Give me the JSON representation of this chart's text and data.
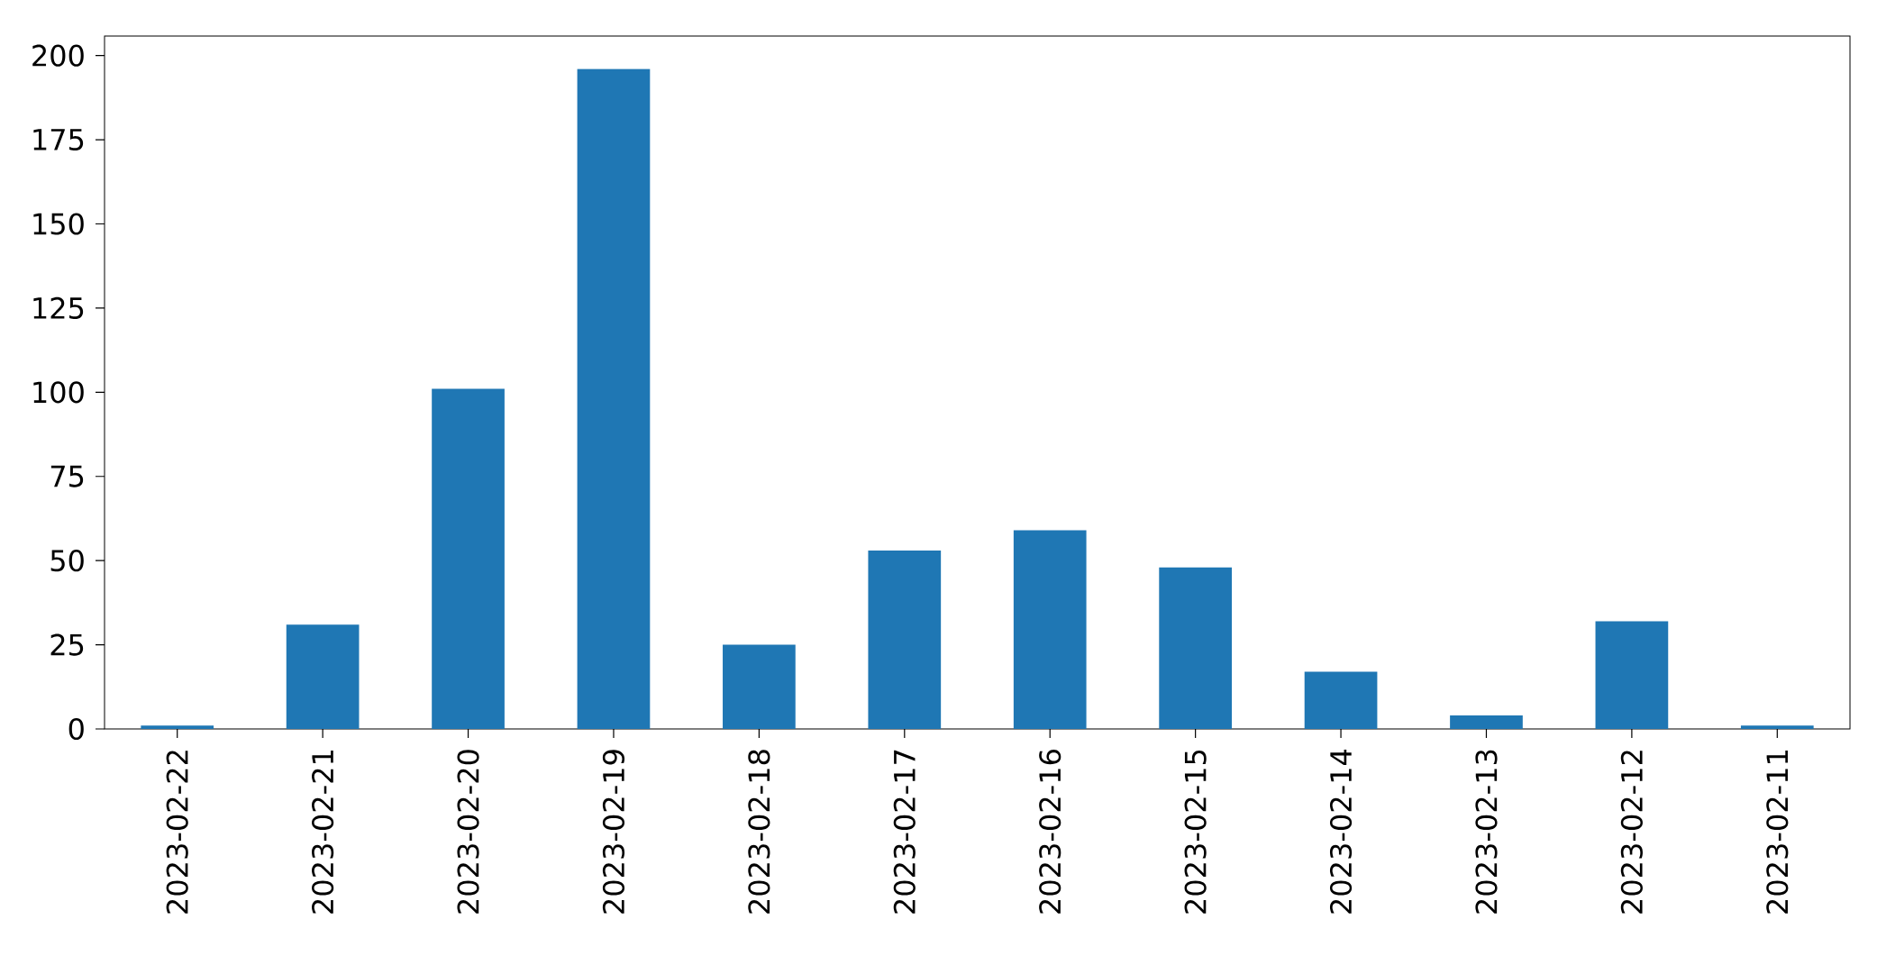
{
  "chart_data": {
    "type": "bar",
    "categories": [
      "2023-02-22",
      "2023-02-21",
      "2023-02-20",
      "2023-02-19",
      "2023-02-18",
      "2023-02-17",
      "2023-02-16",
      "2023-02-15",
      "2023-02-14",
      "2023-02-13",
      "2023-02-12",
      "2023-02-11"
    ],
    "values": [
      1,
      31,
      101,
      196,
      25,
      53,
      59,
      48,
      17,
      4,
      32,
      1
    ],
    "color": "#1f77b4",
    "ylim": [
      0,
      205.8
    ],
    "yticks": [
      0,
      25,
      50,
      75,
      100,
      125,
      150,
      175,
      200
    ]
  }
}
